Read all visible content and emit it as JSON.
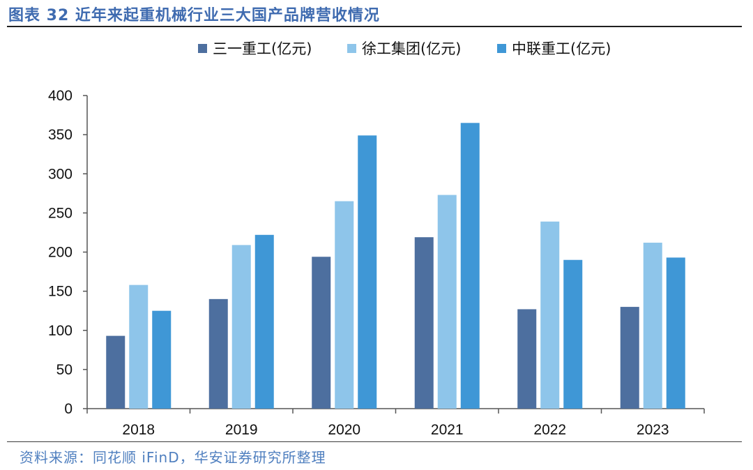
{
  "figure": {
    "title": "图表 32 近年来起重机械行业三大国产品牌营收情况",
    "source": "资料来源：同花顺 iFinD，华安证券研究所整理"
  },
  "chart_data": {
    "type": "bar",
    "title": "图表 32 近年来起重机械行业三大国产品牌营收情况",
    "xlabel": "",
    "ylabel": "",
    "categories": [
      "2018",
      "2019",
      "2020",
      "2021",
      "2022",
      "2023"
    ],
    "series": [
      {
        "name": "三一重工(亿元)",
        "color": "#4d6f9f",
        "values": [
          93,
          140,
          194,
          219,
          127,
          130
        ]
      },
      {
        "name": "徐工集团(亿元)",
        "color": "#8ec5ea",
        "values": [
          158,
          209,
          265,
          273,
          239,
          212
        ]
      },
      {
        "name": "中联重工(亿元)",
        "color": "#3f97d6",
        "values": [
          125,
          222,
          349,
          365,
          190,
          193
        ]
      }
    ],
    "ylim": [
      0,
      400
    ],
    "yticks": [
      0,
      50,
      100,
      150,
      200,
      250,
      300,
      350,
      400
    ],
    "grid": false,
    "legend_position": "top"
  }
}
